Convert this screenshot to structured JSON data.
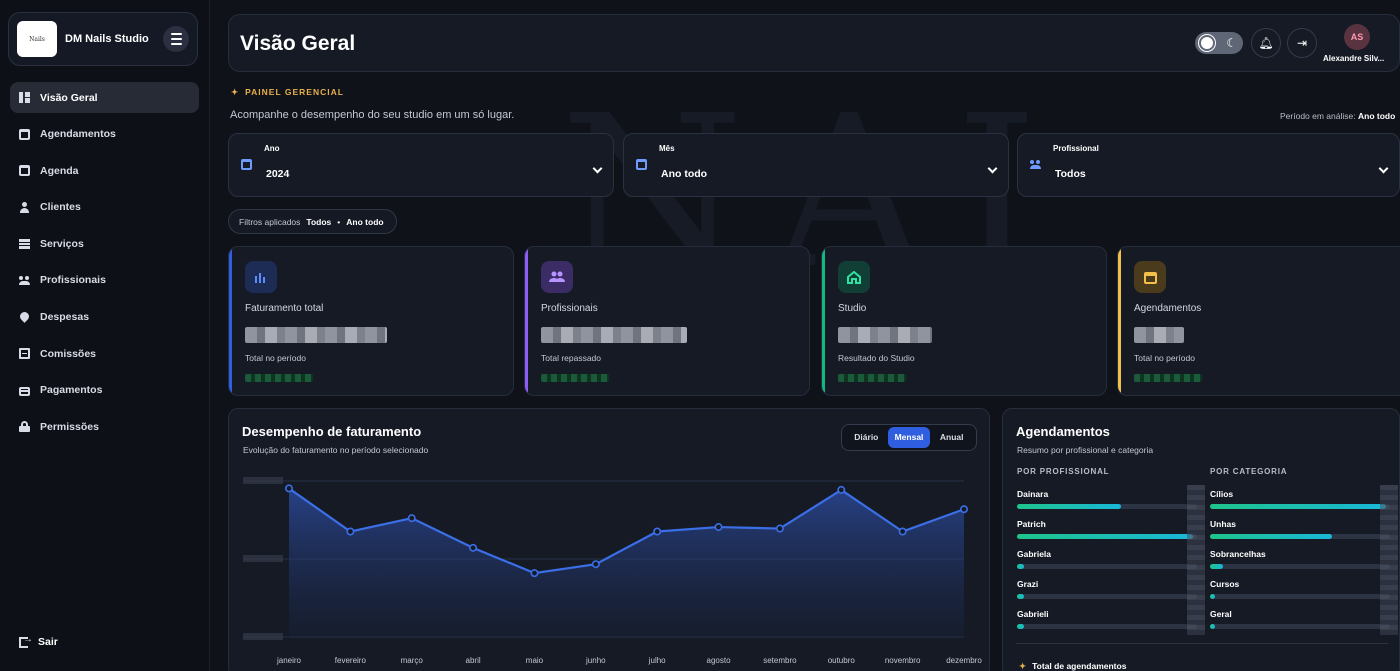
{
  "sidebar": {
    "brand_name": "DM Nails Studio",
    "logo_text": "Nails",
    "items": [
      {
        "label": "Visão Geral",
        "icon": "grid-icon",
        "active": true
      },
      {
        "label": "Agendamentos",
        "icon": "calendar-icon"
      },
      {
        "label": "Agenda",
        "icon": "calendar-icon"
      },
      {
        "label": "Clientes",
        "icon": "user-icon"
      },
      {
        "label": "Serviços",
        "icon": "list-icon"
      },
      {
        "label": "Profissionais",
        "icon": "users-icon"
      },
      {
        "label": "Despesas",
        "icon": "pin-icon"
      },
      {
        "label": "Comissões",
        "icon": "document-icon"
      },
      {
        "label": "Pagamentos",
        "icon": "card-icon"
      },
      {
        "label": "Permissões",
        "icon": "lock-icon"
      }
    ],
    "logout_label": "Sair"
  },
  "header": {
    "title": "Visão Geral",
    "user_initials": "AS",
    "user_name": "Alexandre Silv..."
  },
  "panel": {
    "eyebrow": "PAINEL GERENCIAL",
    "subtitle": "Acompanhe o desempenho do seu studio em um só lugar.",
    "period_label": "Período em análise:",
    "period_value": "Ano todo"
  },
  "filters": {
    "year": {
      "label": "Ano",
      "value": "2024"
    },
    "month": {
      "label": "Mês",
      "value": "Ano todo"
    },
    "professional": {
      "label": "Profissional",
      "value": "Todos"
    },
    "applied_label": "Filtros aplicados",
    "applied_professional": "Todos",
    "applied_month": "Ano todo"
  },
  "cards": [
    {
      "title": "Faturamento total",
      "subtitle": "Total no período",
      "accent": "#2f5fe0",
      "icon_bg": "#1d2c55",
      "icon": "bar-chart-icon"
    },
    {
      "title": "Profissionais",
      "subtitle": "Total repassado",
      "accent": "#8b5cf6",
      "icon_bg": "#3b2c66",
      "icon": "users-icon"
    },
    {
      "title": "Studio",
      "subtitle": "Resultado do Studio",
      "accent": "#10b981",
      "icon_bg": "#123f35",
      "icon": "store-icon"
    },
    {
      "title": "Agendamentos",
      "subtitle": "Total no período",
      "accent": "#f5c04a",
      "icon_bg": "#4a3b1c",
      "icon": "calendar-icon"
    }
  ],
  "performance": {
    "title": "Desempenho de faturamento",
    "subtitle": "Evolução do faturamento no período selecionado",
    "toggle": [
      "Diário",
      "Mensal",
      "Anual"
    ],
    "toggle_selected": "Mensal"
  },
  "chart_data": {
    "type": "area",
    "categories": [
      "janeiro",
      "fevereiro",
      "março",
      "abril",
      "maio",
      "junho",
      "julho",
      "agosto",
      "setembro",
      "outubro",
      "novembro",
      "dezembro"
    ],
    "values": [
      100,
      71,
      80,
      60,
      43,
      49,
      71,
      74,
      73,
      99,
      71,
      86
    ],
    "ylim": [
      0,
      105
    ],
    "grid": true,
    "color": "#3b6fe8"
  },
  "appointments": {
    "title": "Agendamentos",
    "subtitle": "Resumo por profissional e categoria",
    "by_professional_label": "POR PROFISSIONAL",
    "by_category_label": "POR CATEGORIA",
    "by_professional": [
      {
        "name": "Dainara",
        "share": 0.58
      },
      {
        "name": "Patrich",
        "share": 0.98
      },
      {
        "name": "Gabriela",
        "share": 0.04
      },
      {
        "name": "Grazi",
        "share": 0.04
      },
      {
        "name": "Gabrieli",
        "share": 0.04
      }
    ],
    "by_category": [
      {
        "name": "Cílios",
        "share": 0.98
      },
      {
        "name": "Unhas",
        "share": 0.68
      },
      {
        "name": "Sobrancelhas",
        "share": 0.07
      },
      {
        "name": "Cursos",
        "share": 0.03
      },
      {
        "name": "Geral",
        "share": 0.03
      }
    ],
    "total_label": "Total de agendamentos"
  }
}
